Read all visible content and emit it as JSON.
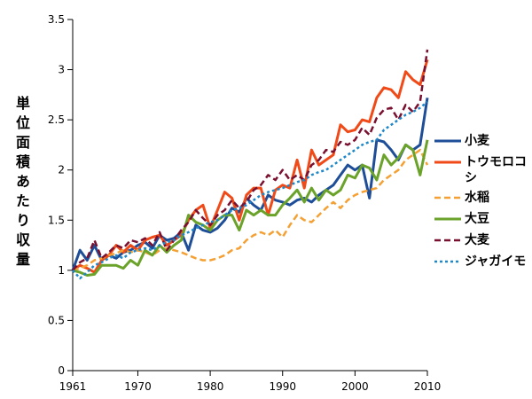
{
  "chart_data": {
    "type": "line",
    "title": "",
    "ylabel": "単位面積あたり収量",
    "xlabel": "",
    "xlim": [
      1961,
      2010
    ],
    "ylim": [
      0,
      3.5
    ],
    "x_ticks": [
      1961,
      1970,
      1980,
      1990,
      2000,
      2010
    ],
    "y_ticks": [
      "0",
      "0.5",
      "1",
      "1.5",
      "2",
      "2.5",
      "3",
      "3.5"
    ],
    "grid": false,
    "legend_position": "right",
    "x": [
      1961,
      1962,
      1963,
      1964,
      1965,
      1966,
      1967,
      1968,
      1969,
      1970,
      1971,
      1972,
      1973,
      1974,
      1975,
      1976,
      1977,
      1978,
      1979,
      1980,
      1981,
      1982,
      1983,
      1984,
      1985,
      1986,
      1987,
      1988,
      1989,
      1990,
      1991,
      1992,
      1993,
      1994,
      1995,
      1996,
      1997,
      1998,
      1999,
      2000,
      2001,
      2002,
      2003,
      2004,
      2005,
      2006,
      2007,
      2008,
      2009,
      2010
    ],
    "series": [
      {
        "name": "小麦",
        "color": "#1f4e99",
        "dash": "solid",
        "width": 3,
        "values": [
          1.0,
          1.2,
          1.1,
          1.25,
          1.1,
          1.15,
          1.12,
          1.18,
          1.2,
          1.25,
          1.28,
          1.22,
          1.35,
          1.3,
          1.32,
          1.38,
          1.2,
          1.45,
          1.4,
          1.38,
          1.42,
          1.5,
          1.62,
          1.58,
          1.72,
          1.65,
          1.6,
          1.75,
          1.7,
          1.68,
          1.65,
          1.7,
          1.72,
          1.68,
          1.75,
          1.8,
          1.85,
          1.95,
          2.05,
          2.0,
          2.05,
          1.72,
          2.3,
          2.28,
          2.2,
          2.1,
          2.25,
          2.2,
          2.25,
          2.72
        ]
      },
      {
        "name": "トウモロコシ",
        "color": "#f04a18",
        "dash": "solid",
        "width": 3,
        "values": [
          1.0,
          1.05,
          1.02,
          0.98,
          1.1,
          1.15,
          1.25,
          1.18,
          1.25,
          1.2,
          1.3,
          1.33,
          1.35,
          1.25,
          1.3,
          1.35,
          1.5,
          1.6,
          1.65,
          1.42,
          1.6,
          1.78,
          1.72,
          1.5,
          1.75,
          1.82,
          1.82,
          1.55,
          1.8,
          1.85,
          1.82,
          2.1,
          1.82,
          2.2,
          2.05,
          2.1,
          2.15,
          2.45,
          2.38,
          2.4,
          2.5,
          2.48,
          2.72,
          2.82,
          2.8,
          2.72,
          2.98,
          2.9,
          2.85,
          3.1
        ]
      },
      {
        "name": "水稲",
        "color": "#f5a033",
        "dash": "dash",
        "width": 2.5,
        "values": [
          1.0,
          1.02,
          1.05,
          1.1,
          1.12,
          1.15,
          1.17,
          1.2,
          1.18,
          1.2,
          1.18,
          1.15,
          1.2,
          1.22,
          1.2,
          1.18,
          1.15,
          1.12,
          1.1,
          1.1,
          1.12,
          1.15,
          1.2,
          1.22,
          1.3,
          1.35,
          1.38,
          1.35,
          1.4,
          1.33,
          1.45,
          1.55,
          1.5,
          1.48,
          1.55,
          1.62,
          1.68,
          1.62,
          1.7,
          1.75,
          1.78,
          1.8,
          1.82,
          1.9,
          1.95,
          2.0,
          2.1,
          2.15,
          2.2,
          2.05
        ]
      },
      {
        "name": "大豆",
        "color": "#6aa22a",
        "dash": "solid",
        "width": 3,
        "values": [
          1.0,
          0.98,
          0.95,
          0.96,
          1.05,
          1.05,
          1.05,
          1.02,
          1.1,
          1.05,
          1.2,
          1.15,
          1.25,
          1.18,
          1.25,
          1.3,
          1.55,
          1.48,
          1.45,
          1.4,
          1.5,
          1.55,
          1.55,
          1.4,
          1.6,
          1.55,
          1.6,
          1.55,
          1.55,
          1.65,
          1.72,
          1.8,
          1.68,
          1.82,
          1.7,
          1.8,
          1.75,
          1.8,
          1.95,
          1.92,
          2.05,
          2.02,
          1.9,
          2.15,
          2.05,
          2.12,
          2.25,
          2.2,
          1.95,
          2.3
        ]
      },
      {
        "name": "大麦",
        "color": "#7a1030",
        "dash": "dash",
        "width": 2.5,
        "values": [
          1.0,
          1.08,
          1.12,
          1.3,
          1.12,
          1.18,
          1.25,
          1.22,
          1.3,
          1.28,
          1.32,
          1.25,
          1.38,
          1.2,
          1.3,
          1.4,
          1.48,
          1.6,
          1.52,
          1.45,
          1.55,
          1.6,
          1.7,
          1.62,
          1.68,
          1.8,
          1.85,
          1.95,
          1.9,
          2.0,
          1.9,
          1.95,
          1.9,
          2.05,
          2.1,
          2.2,
          2.18,
          2.28,
          2.25,
          2.3,
          2.42,
          2.35,
          2.52,
          2.6,
          2.62,
          2.5,
          2.65,
          2.58,
          2.68,
          3.2
        ]
      },
      {
        "name": "ジャガイモ",
        "color": "#1e88c8",
        "dash": "dot",
        "width": 2.5,
        "values": [
          1.0,
          0.92,
          0.98,
          1.05,
          1.08,
          1.12,
          1.15,
          1.12,
          1.18,
          1.2,
          1.22,
          1.2,
          1.25,
          1.28,
          1.3,
          1.35,
          1.38,
          1.42,
          1.45,
          1.48,
          1.5,
          1.55,
          1.6,
          1.62,
          1.65,
          1.7,
          1.75,
          1.78,
          1.8,
          1.82,
          1.85,
          1.88,
          1.9,
          1.95,
          1.98,
          2.0,
          2.05,
          2.1,
          2.15,
          2.2,
          2.25,
          2.28,
          2.3,
          2.4,
          2.45,
          2.5,
          2.55,
          2.58,
          2.62,
          2.68
        ]
      }
    ]
  }
}
